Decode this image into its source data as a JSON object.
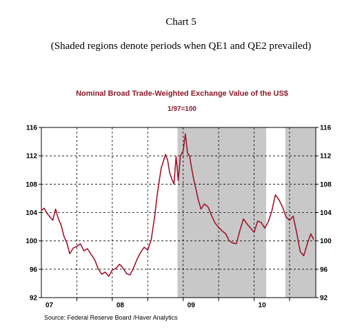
{
  "caption": {
    "title": "Chart 5",
    "note": "(Shaded regions denote periods when QE1 and QE2 prevailed)"
  },
  "colors": {
    "series": "#a0142c",
    "shade": "#c8c8c8",
    "title": "#8b1a2b"
  },
  "chart_data": {
    "type": "line",
    "title": "Nominal Broad Trade-Weighted Exchange Value of the US$",
    "subtitle": "1/97=100",
    "source": "Source:  Federal Reserve Board /Haver Analytics",
    "ylim": [
      92,
      116
    ],
    "yticks": [
      92,
      96,
      100,
      104,
      108,
      112,
      116
    ],
    "y_axes": "both sides",
    "xlim": [
      2007.0,
      2010.87
    ],
    "x_tick_labels": [
      {
        "label": "07",
        "x": 2007.0
      },
      {
        "label": "08",
        "x": 2008.0
      },
      {
        "label": "09",
        "x": 2009.0
      },
      {
        "label": "10",
        "x": 2010.0
      }
    ],
    "x_gridlines": [
      2007.5,
      2008.0,
      2008.5,
      2009.0,
      2009.5,
      2010.0,
      2010.5
    ],
    "grid": "dashed",
    "shaded_periods": [
      {
        "start": 2008.92,
        "end": 2010.17
      },
      {
        "start": 2010.44,
        "end": 2010.87
      }
    ],
    "series": [
      {
        "x": [
          2007.0,
          2007.04,
          2007.08,
          2007.12,
          2007.16,
          2007.2,
          2007.24,
          2007.28,
          2007.32,
          2007.36,
          2007.4,
          2007.45,
          2007.5,
          2007.55,
          2007.6,
          2007.65,
          2007.7,
          2007.75,
          2007.8,
          2007.85,
          2007.9,
          2007.95,
          2008.0,
          2008.05,
          2008.1,
          2008.15,
          2008.2,
          2008.25,
          2008.3,
          2008.35,
          2008.4,
          2008.45,
          2008.5,
          2008.55,
          2008.6,
          2008.63,
          2008.66,
          2008.69,
          2008.72,
          2008.75,
          2008.78,
          2008.81,
          2008.84,
          2008.87,
          2008.9,
          2008.93,
          2008.96,
          2009.0,
          2009.03,
          2009.06,
          2009.09,
          2009.12,
          2009.15,
          2009.18,
          2009.21,
          2009.25,
          2009.3,
          2009.35,
          2009.4,
          2009.45,
          2009.5,
          2009.55,
          2009.6,
          2009.65,
          2009.7,
          2009.75,
          2009.8,
          2009.85,
          2009.9,
          2009.95,
          2010.0,
          2010.05,
          2010.1,
          2010.15,
          2010.2,
          2010.25,
          2010.3,
          2010.35,
          2010.4,
          2010.45,
          2010.5,
          2010.55,
          2010.6,
          2010.65,
          2010.7,
          2010.75,
          2010.8,
          2010.84
        ],
        "y": [
          104.3,
          104.6,
          103.9,
          103.4,
          102.9,
          104.5,
          103.1,
          102.2,
          100.6,
          99.7,
          98.2,
          99.0,
          99.2,
          99.6,
          98.6,
          98.9,
          98.1,
          97.4,
          96.1,
          95.3,
          95.6,
          95.0,
          95.9,
          96.1,
          96.7,
          96.2,
          95.4,
          95.2,
          96.2,
          97.4,
          98.4,
          99.1,
          98.7,
          100.2,
          103.6,
          106.2,
          108.3,
          110.3,
          111.2,
          112.2,
          111.4,
          109.6,
          108.7,
          108.0,
          111.9,
          108.5,
          112.0,
          112.7,
          115.1,
          112.4,
          112.0,
          110.2,
          108.6,
          107.3,
          105.9,
          104.5,
          105.2,
          104.8,
          103.6,
          102.5,
          101.9,
          101.4,
          101.0,
          100.0,
          99.7,
          99.6,
          101.5,
          103.1,
          102.4,
          101.8,
          101.2,
          102.8,
          102.6,
          101.8,
          102.7,
          104.2,
          106.5,
          105.8,
          104.8,
          103.4,
          102.9,
          103.5,
          101.2,
          98.5,
          97.9,
          99.6,
          101.0,
          100.2
        ]
      }
    ]
  }
}
